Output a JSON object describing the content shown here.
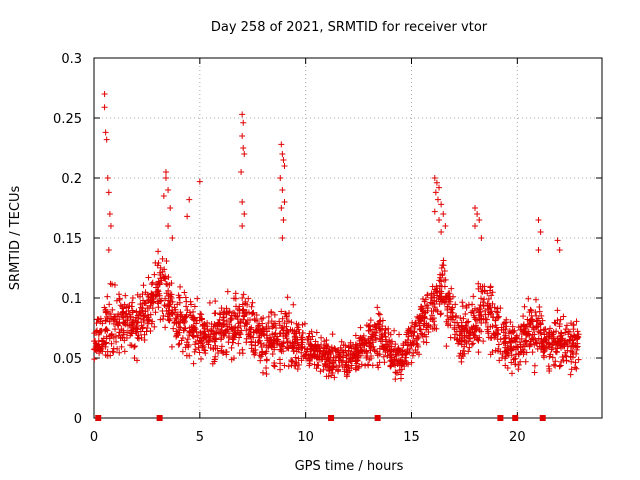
{
  "chart_data": {
    "type": "scatter",
    "title": "Day 258 of 2021, SRMTID for receiver vtor",
    "xlabel": "GPS time / hours",
    "ylabel": "SRMTID / TECUs",
    "xlim": [
      0,
      24
    ],
    "ylim": [
      0,
      0.3
    ],
    "x_ticks": [
      0,
      5,
      10,
      15,
      20
    ],
    "y_ticks": [
      0,
      0.05,
      0.1,
      0.15,
      0.2,
      0.25,
      0.3
    ],
    "x_tick_labels": [
      "0",
      "5",
      "10",
      "15",
      "20"
    ],
    "y_tick_labels": [
      "0",
      "0.05",
      "0.1",
      "0.15",
      "0.2",
      "0.25",
      "0.3"
    ],
    "grid": true,
    "marker": "+",
    "color": "#e00000",
    "baseline_markers_x": [
      0.2,
      3.1,
      11.2,
      13.4,
      19.2,
      19.9,
      21.2
    ],
    "band": [
      [
        0.0,
        0.06,
        0.025
      ],
      [
        0.5,
        0.07,
        0.03
      ],
      [
        1.0,
        0.08,
        0.03
      ],
      [
        1.5,
        0.08,
        0.03
      ],
      [
        2.0,
        0.075,
        0.03
      ],
      [
        2.5,
        0.09,
        0.03
      ],
      [
        3.0,
        0.11,
        0.035
      ],
      [
        3.5,
        0.095,
        0.035
      ],
      [
        4.0,
        0.085,
        0.03
      ],
      [
        4.5,
        0.075,
        0.03
      ],
      [
        5.0,
        0.07,
        0.03
      ],
      [
        5.5,
        0.07,
        0.025
      ],
      [
        6.0,
        0.07,
        0.025
      ],
      [
        6.5,
        0.075,
        0.03
      ],
      [
        7.0,
        0.08,
        0.035
      ],
      [
        7.5,
        0.07,
        0.03
      ],
      [
        8.0,
        0.065,
        0.025
      ],
      [
        8.5,
        0.065,
        0.025
      ],
      [
        9.0,
        0.07,
        0.03
      ],
      [
        9.5,
        0.06,
        0.025
      ],
      [
        10.0,
        0.06,
        0.02
      ],
      [
        10.5,
        0.055,
        0.02
      ],
      [
        11.0,
        0.05,
        0.02
      ],
      [
        11.5,
        0.048,
        0.02
      ],
      [
        12.0,
        0.05,
        0.02
      ],
      [
        12.5,
        0.055,
        0.02
      ],
      [
        13.0,
        0.065,
        0.025
      ],
      [
        13.5,
        0.07,
        0.025
      ],
      [
        14.0,
        0.055,
        0.02
      ],
      [
        14.5,
        0.05,
        0.02
      ],
      [
        15.0,
        0.06,
        0.025
      ],
      [
        15.5,
        0.08,
        0.025
      ],
      [
        16.0,
        0.09,
        0.03
      ],
      [
        16.5,
        0.11,
        0.035
      ],
      [
        17.0,
        0.08,
        0.03
      ],
      [
        17.5,
        0.07,
        0.03
      ],
      [
        18.0,
        0.075,
        0.03
      ],
      [
        18.5,
        0.09,
        0.035
      ],
      [
        19.0,
        0.075,
        0.03
      ],
      [
        19.5,
        0.06,
        0.025
      ],
      [
        20.0,
        0.06,
        0.025
      ],
      [
        20.5,
        0.07,
        0.03
      ],
      [
        21.0,
        0.07,
        0.03
      ],
      [
        21.5,
        0.06,
        0.025
      ],
      [
        22.0,
        0.065,
        0.025
      ],
      [
        22.5,
        0.06,
        0.025
      ],
      [
        22.9,
        0.06,
        0.025
      ]
    ],
    "spikes": [
      [
        0.5,
        0.27
      ],
      [
        0.5,
        0.259
      ],
      [
        0.55,
        0.238
      ],
      [
        0.6,
        0.232
      ],
      [
        0.65,
        0.2
      ],
      [
        0.7,
        0.188
      ],
      [
        0.75,
        0.17
      ],
      [
        0.8,
        0.16
      ],
      [
        0.7,
        0.14
      ],
      [
        3.4,
        0.205
      ],
      [
        3.4,
        0.2
      ],
      [
        3.5,
        0.19
      ],
      [
        3.3,
        0.185
      ],
      [
        3.6,
        0.175
      ],
      [
        3.5,
        0.16
      ],
      [
        3.7,
        0.15
      ],
      [
        4.5,
        0.182
      ],
      [
        4.4,
        0.168
      ],
      [
        5.0,
        0.197
      ],
      [
        7.0,
        0.253
      ],
      [
        7.05,
        0.246
      ],
      [
        7.0,
        0.235
      ],
      [
        7.05,
        0.225
      ],
      [
        7.1,
        0.22
      ],
      [
        6.95,
        0.205
      ],
      [
        7.0,
        0.18
      ],
      [
        7.1,
        0.17
      ],
      [
        7.0,
        0.16
      ],
      [
        8.85,
        0.228
      ],
      [
        8.9,
        0.22
      ],
      [
        8.95,
        0.215
      ],
      [
        9.0,
        0.21
      ],
      [
        8.8,
        0.2
      ],
      [
        8.9,
        0.19
      ],
      [
        9.0,
        0.18
      ],
      [
        8.85,
        0.175
      ],
      [
        8.95,
        0.165
      ],
      [
        8.9,
        0.15
      ],
      [
        16.1,
        0.2
      ],
      [
        16.2,
        0.196
      ],
      [
        16.3,
        0.192
      ],
      [
        16.15,
        0.188
      ],
      [
        16.25,
        0.182
      ],
      [
        16.4,
        0.178
      ],
      [
        16.1,
        0.172
      ],
      [
        16.5,
        0.17
      ],
      [
        16.3,
        0.165
      ],
      [
        16.6,
        0.16
      ],
      [
        16.4,
        0.155
      ],
      [
        18.0,
        0.175
      ],
      [
        18.1,
        0.17
      ],
      [
        18.2,
        0.165
      ],
      [
        18.0,
        0.16
      ],
      [
        18.3,
        0.15
      ],
      [
        21.0,
        0.165
      ],
      [
        21.1,
        0.155
      ],
      [
        21.0,
        0.14
      ],
      [
        21.9,
        0.148
      ],
      [
        22.0,
        0.14
      ]
    ],
    "points_per_half_hour": 48
  }
}
